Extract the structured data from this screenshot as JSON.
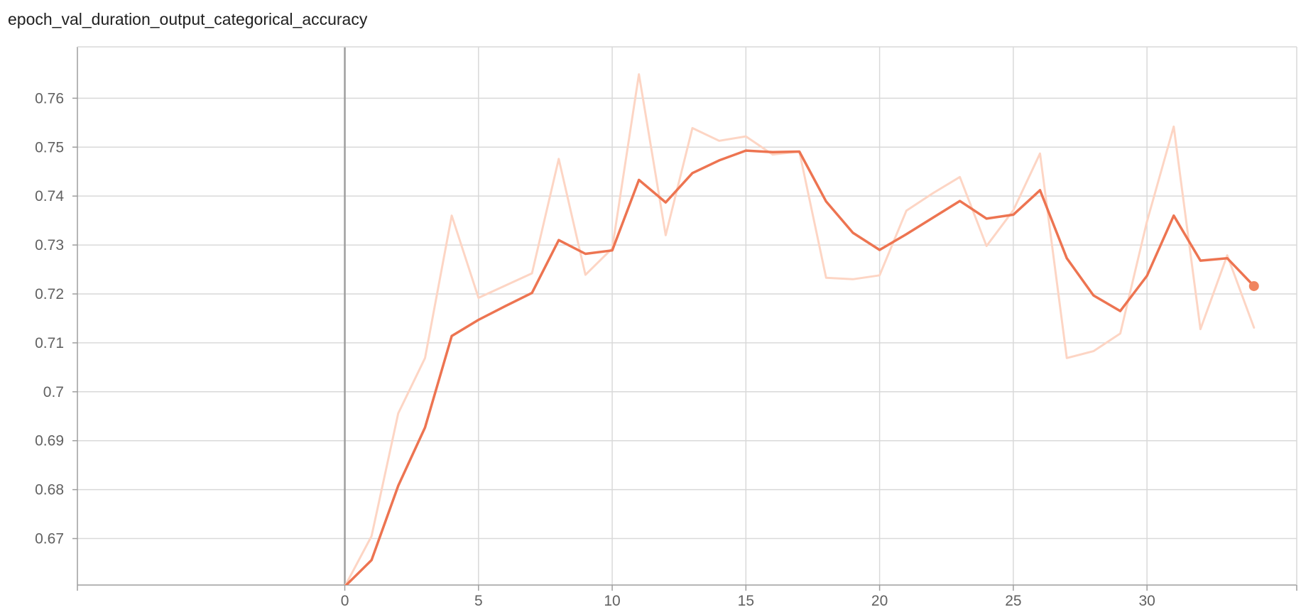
{
  "chart_data": {
    "type": "line",
    "title": "epoch_val_duration_output_categorical_accuracy",
    "xlabel": "",
    "ylabel": "",
    "xlim": [
      -10,
      35.6
    ],
    "ylim": [
      0.6605,
      0.7705
    ],
    "x_ticks": [
      0,
      5,
      10,
      15,
      20,
      25,
      30
    ],
    "y_ticks": [
      0.67,
      0.68,
      0.69,
      0.7,
      0.71,
      0.72,
      0.73,
      0.74,
      0.75,
      0.76
    ],
    "grid": true,
    "series": [
      {
        "role": "raw",
        "color": "#fdd5c4",
        "x": [
          0,
          1,
          2,
          3,
          4,
          5,
          6,
          7,
          8,
          9,
          10,
          11,
          12,
          13,
          14,
          15,
          16,
          17,
          18,
          19,
          20,
          21,
          22,
          23,
          24,
          25,
          26,
          27,
          28,
          29,
          30,
          31,
          32,
          33,
          34
        ],
        "values": [
          0.6602,
          0.6705,
          0.6956,
          0.7069,
          0.736,
          0.7192,
          0.7217,
          0.7242,
          0.7476,
          0.7239,
          0.7293,
          0.7649,
          0.732,
          0.7539,
          0.7513,
          0.7522,
          0.7485,
          0.7491,
          0.7233,
          0.723,
          0.7238,
          0.737,
          0.7406,
          0.7439,
          0.7298,
          0.7371,
          0.7487,
          0.7069,
          0.7083,
          0.7119,
          0.7348,
          0.7542,
          0.7128,
          0.7279,
          0.7131
        ]
      },
      {
        "role": "smoothed",
        "color": "#ed7451",
        "x": [
          0,
          1,
          2,
          3,
          4,
          5,
          6,
          7,
          8,
          9,
          10,
          11,
          12,
          13,
          14,
          15,
          16,
          17,
          18,
          19,
          20,
          21,
          22,
          23,
          24,
          25,
          26,
          27,
          28,
          29,
          30,
          31,
          32,
          33,
          34
        ],
        "values": [
          0.6602,
          0.6656,
          0.6808,
          0.6927,
          0.7114,
          0.7147,
          0.7175,
          0.7202,
          0.731,
          0.7282,
          0.7289,
          0.7433,
          0.7387,
          0.7447,
          0.7473,
          0.7493,
          0.749,
          0.7491,
          0.7389,
          0.7325,
          0.729,
          0.7322,
          0.7356,
          0.739,
          0.7354,
          0.7362,
          0.7412,
          0.7273,
          0.7197,
          0.7165,
          0.7237,
          0.736,
          0.7268,
          0.7273,
          0.7216
        ]
      }
    ]
  }
}
